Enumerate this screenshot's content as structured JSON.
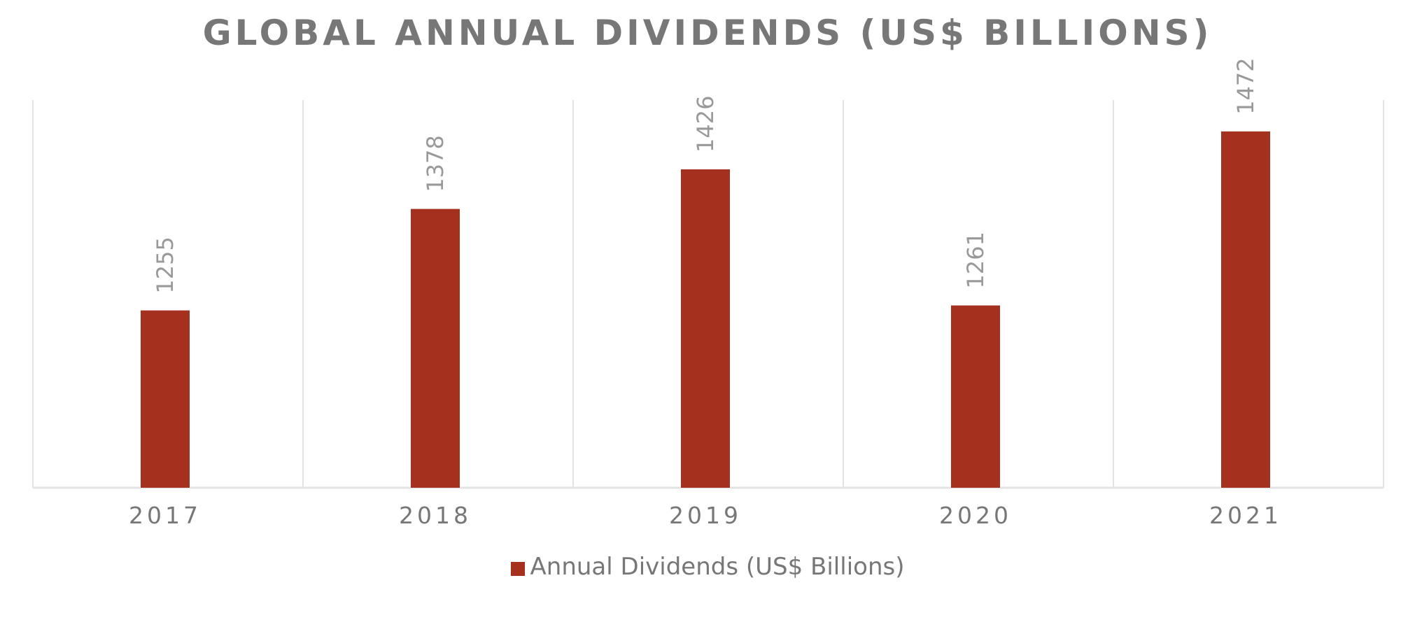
{
  "chart_data": {
    "type": "bar",
    "title": "GLOBAL ANNUAL DIVIDENDS (US$ BILLIONS)",
    "categories": [
      "2017",
      "2018",
      "2019",
      "2020",
      "2021"
    ],
    "series": [
      {
        "name": "Annual Dividends (US$ Billions)",
        "values": [
          1255,
          1378,
          1426,
          1261,
          1472
        ],
        "color": "#a5301e"
      }
    ],
    "data_labels": [
      "1255",
      "1378",
      "1426",
      "1261",
      "1472"
    ],
    "data_label_rotation": "vertical",
    "xlabel": "",
    "ylabel": "",
    "y_axis_visible": false,
    "grid": "vertical category separators",
    "legend_position": "bottom",
    "colors": {
      "bar": "#a5301e",
      "text": "#777777",
      "label": "#999999",
      "grid": "#e3e3e3"
    }
  }
}
